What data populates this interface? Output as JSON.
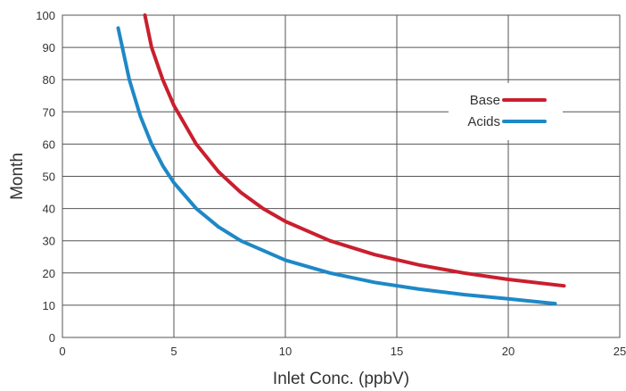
{
  "chart_data": {
    "type": "line",
    "xlabel": "Inlet Conc. (ppbV)",
    "ylabel": "Month",
    "xlim": [
      0,
      25
    ],
    "ylim": [
      0,
      100
    ],
    "xticks": [
      0,
      5,
      10,
      15,
      20,
      25
    ],
    "yticks": [
      0,
      10,
      20,
      30,
      40,
      50,
      60,
      70,
      80,
      90,
      100
    ],
    "grid": true,
    "legend_position": "right",
    "series": [
      {
        "name": "Base",
        "color": "#c91f2e",
        "x": [
          3.7,
          4,
          4.5,
          5,
          6,
          7,
          8,
          9,
          10,
          12,
          14,
          16,
          18,
          20,
          22.5
        ],
        "y": [
          100,
          90,
          80,
          72,
          60,
          51.4,
          45,
          40,
          36,
          30,
          25.7,
          22.5,
          20,
          18,
          16
        ]
      },
      {
        "name": "Acids",
        "color": "#1e88c7",
        "x": [
          2.5,
          3,
          3.5,
          4,
          4.5,
          5,
          6,
          7,
          8,
          10,
          12,
          14,
          16,
          18,
          20,
          22.1
        ],
        "y": [
          96,
          80,
          68.6,
          60,
          53.3,
          48,
          40,
          34.3,
          30,
          24,
          20,
          17.1,
          15,
          13.3,
          12,
          10.5
        ]
      }
    ]
  }
}
